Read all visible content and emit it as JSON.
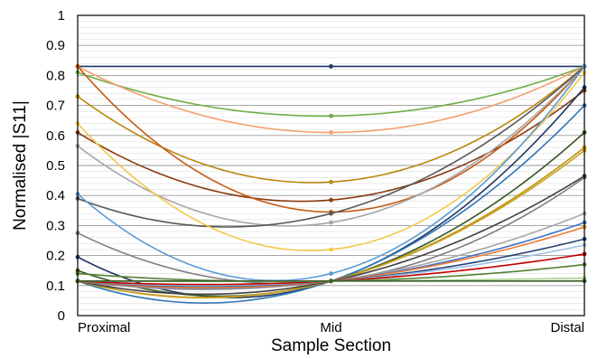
{
  "chart_data": {
    "type": "line",
    "title": "",
    "xlabel": "Sample Section",
    "ylabel": "Normalised |S11|",
    "categories": [
      "Proximal",
      "Mid",
      "Distal"
    ],
    "ylim": [
      0,
      1
    ],
    "yticks": [
      "0",
      "0.1",
      "0.2",
      "0.3",
      "0.4",
      "0.5",
      "0.6",
      "0.7",
      "0.8",
      "0.9",
      "1"
    ],
    "grid": "major-and-minor-horizontal",
    "legend": "none",
    "series": [
      {
        "color": "#1f3864",
        "values": [
          0.83,
          0.83,
          0.83
        ]
      },
      {
        "color": "#70ad47",
        "values": [
          0.81,
          0.665,
          0.83
        ]
      },
      {
        "color": "#f4a070",
        "values": [
          0.83,
          0.61,
          0.83
        ]
      },
      {
        "color": "#b8860b",
        "values": [
          0.73,
          0.445,
          0.83
        ]
      },
      {
        "color": "#8b3a0f",
        "values": [
          0.61,
          0.385,
          0.75
        ]
      },
      {
        "color": "#c55a11",
        "values": [
          0.83,
          0.345,
          0.83
        ]
      },
      {
        "color": "#a6a6a6",
        "values": [
          0.565,
          0.31,
          0.83
        ]
      },
      {
        "color": "#595959",
        "values": [
          0.39,
          0.34,
          0.83
        ]
      },
      {
        "color": "#f2c94c",
        "values": [
          0.64,
          0.22,
          0.81
        ]
      },
      {
        "color": "#5b9bd5",
        "values": [
          0.405,
          0.14,
          0.83
        ]
      },
      {
        "color": "#7f7f7f",
        "values": [
          0.275,
          0.115,
          0.46
        ]
      },
      {
        "color": "#1f3864",
        "values": [
          0.195,
          0.115,
          0.76
        ]
      },
      {
        "color": "#2e75b6",
        "values": [
          0.115,
          0.115,
          0.7
        ]
      },
      {
        "color": "#375623",
        "values": [
          0.15,
          0.115,
          0.61
        ]
      },
      {
        "color": "#bf9000",
        "values": [
          0.115,
          0.115,
          0.56
        ]
      },
      {
        "color": "#c9a227",
        "values": [
          0.115,
          0.115,
          0.55
        ]
      },
      {
        "color": "#404040",
        "values": [
          0.115,
          0.115,
          0.465
        ]
      },
      {
        "color": "#a6a6a6",
        "values": [
          0.115,
          0.115,
          0.34
        ]
      },
      {
        "color": "#4472c4",
        "values": [
          0.115,
          0.115,
          0.31
        ]
      },
      {
        "color": "#ed7d31",
        "values": [
          0.115,
          0.115,
          0.295
        ]
      },
      {
        "color": "#264478",
        "values": [
          0.115,
          0.115,
          0.255
        ]
      },
      {
        "color": "#9dc3e6",
        "values": [
          0.115,
          0.115,
          0.235
        ]
      },
      {
        "color": "#c00000",
        "values": [
          0.115,
          0.115,
          0.205
        ]
      },
      {
        "color": "#548235",
        "values": [
          0.14,
          0.115,
          0.17
        ]
      },
      {
        "color": "#a9d18e",
        "values": [
          0.115,
          0.115,
          0.125
        ]
      },
      {
        "color": "#3a5f2a",
        "values": [
          0.115,
          0.115,
          0.115
        ]
      }
    ]
  }
}
